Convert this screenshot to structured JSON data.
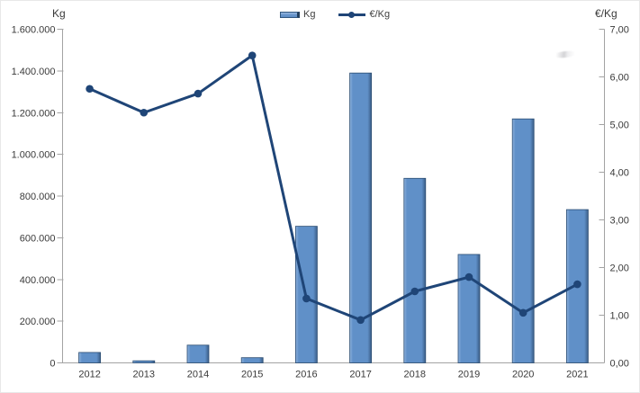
{
  "chart_data": {
    "type": "combo-bar-line",
    "title": "",
    "categories": [
      "2012",
      "2013",
      "2014",
      "2015",
      "2016",
      "2017",
      "2018",
      "2019",
      "2020",
      "2021"
    ],
    "series": [
      {
        "name": "Kg",
        "type": "bar",
        "axis": "left",
        "values": [
          50000,
          10000,
          85000,
          25000,
          655000,
          1390000,
          885000,
          520000,
          1170000,
          735000
        ]
      },
      {
        "name": "€/Kg",
        "type": "line",
        "axis": "right",
        "values": [
          5.75,
          5.25,
          5.65,
          6.45,
          1.35,
          0.9,
          1.5,
          1.8,
          1.05,
          1.65
        ]
      }
    ],
    "left_axis": {
      "title": "Kg",
      "min": 0,
      "max": 1600000,
      "step": 200000,
      "tick_labels": [
        "0",
        "200.000",
        "400.000",
        "600.000",
        "800.000",
        "1.000.000",
        "1.200.000",
        "1.400.000",
        "1.600.000"
      ]
    },
    "right_axis": {
      "title": "€/Kg",
      "min": 0,
      "max": 7,
      "step": 1,
      "tick_labels": [
        "0,00",
        "1,00",
        "2,00",
        "3,00",
        "4,00",
        "5,00",
        "6,00",
        "7,00"
      ]
    },
    "legend": {
      "position": "top",
      "items": [
        {
          "label": "Kg",
          "marker": "bar"
        },
        {
          "label": "€/Kg",
          "marker": "line"
        }
      ]
    },
    "grid": false,
    "colors": {
      "bar_fill": "#6090c8",
      "bar_fill_light": "#8fb2dd",
      "bar_stroke": "#2b4d72",
      "line": "#1f4577",
      "axis": "#a3a3a3",
      "text": "#3a3a3a"
    }
  }
}
